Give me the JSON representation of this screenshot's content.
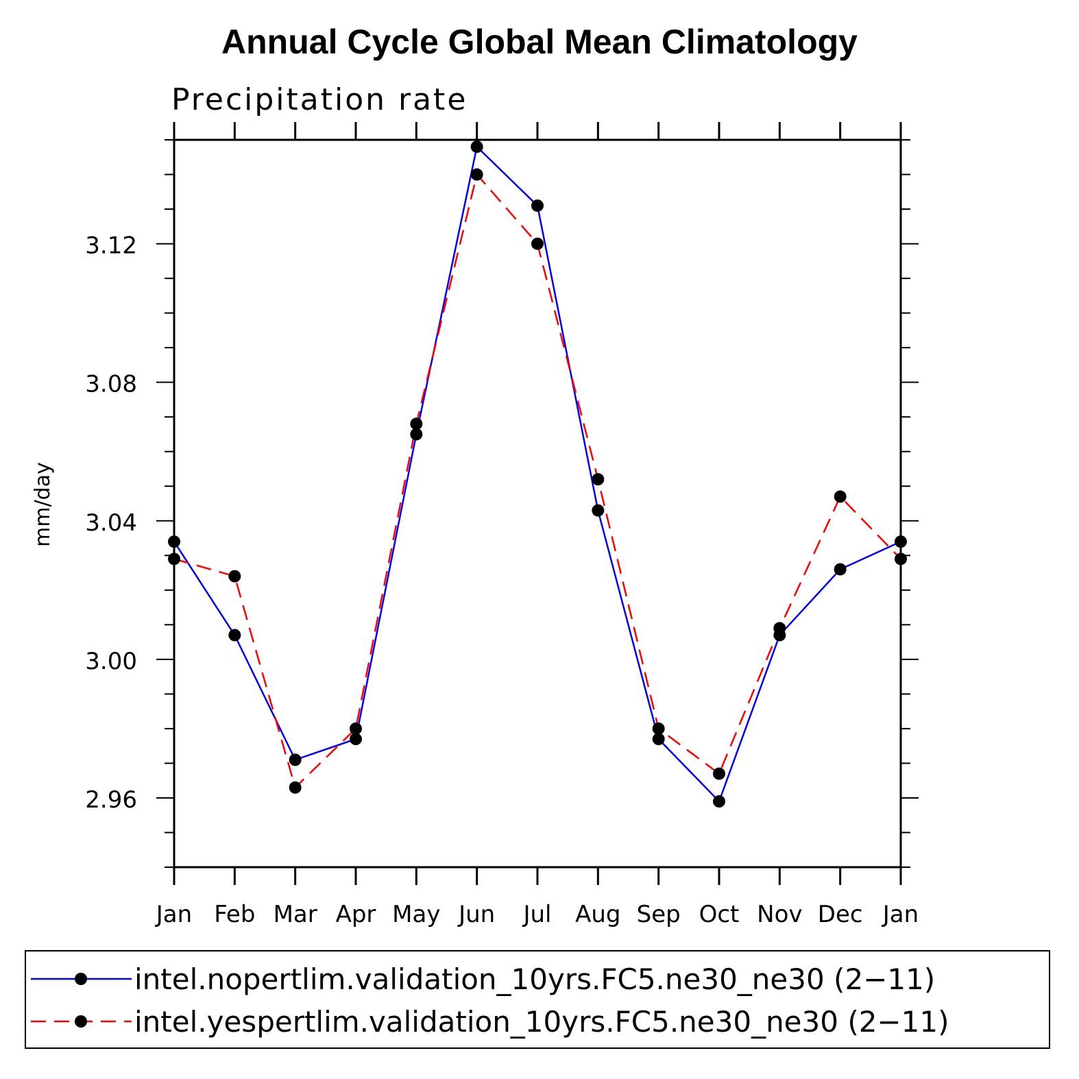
{
  "chart_data": {
    "type": "line",
    "title": "Annual Cycle Global Mean Climatology",
    "subtitle": "Precipitation rate",
    "xlabel": "",
    "ylabel": "mm/day",
    "categories": [
      "Jan",
      "Feb",
      "Mar",
      "Apr",
      "May",
      "Jun",
      "Jul",
      "Aug",
      "Sep",
      "Oct",
      "Nov",
      "Dec",
      "Jan"
    ],
    "ylim": [
      2.94,
      3.15
    ],
    "yticks": [
      "2.96",
      "3.00",
      "3.04",
      "3.08",
      "3.12"
    ],
    "ytick_values": [
      2.96,
      3.0,
      3.04,
      3.08,
      3.12
    ],
    "series": [
      {
        "name": "intel.nopertlim.validation_10yrs.FC5.ne30_ne30 (2−11)",
        "color": "#0000ff",
        "dash": "solid",
        "values": [
          3.034,
          3.007,
          2.971,
          2.977,
          3.065,
          3.148,
          3.131,
          3.043,
          2.977,
          2.959,
          3.007,
          3.026,
          3.034
        ]
      },
      {
        "name": "intel.yespertlim.validation_10yrs.FC5.ne30_ne30 (2−11)",
        "color": "#ff0000",
        "dash": "dashed",
        "values": [
          3.029,
          3.024,
          2.963,
          2.98,
          3.068,
          3.14,
          3.12,
          3.052,
          2.98,
          2.967,
          3.009,
          3.047,
          3.029
        ]
      }
    ],
    "legend_position": "bottom",
    "marker_color": "#000000"
  }
}
